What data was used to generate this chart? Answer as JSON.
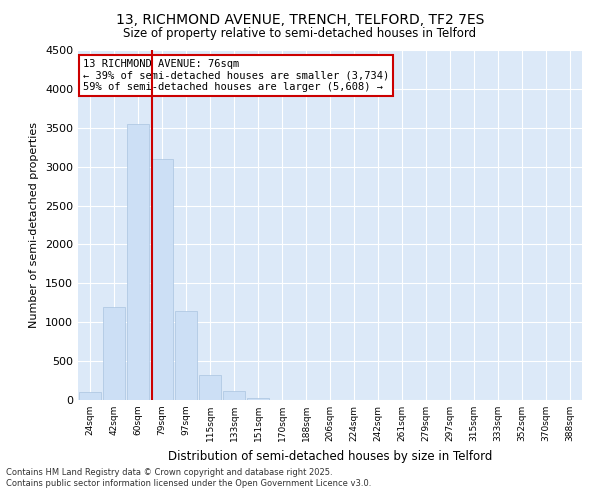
{
  "title_line1": "13, RICHMOND AVENUE, TRENCH, TELFORD, TF2 7ES",
  "title_line2": "Size of property relative to semi-detached houses in Telford",
  "xlabel": "Distribution of semi-detached houses by size in Telford",
  "ylabel": "Number of semi-detached properties",
  "categories": [
    "24sqm",
    "42sqm",
    "60sqm",
    "79sqm",
    "97sqm",
    "115sqm",
    "133sqm",
    "151sqm",
    "170sqm",
    "188sqm",
    "206sqm",
    "224sqm",
    "242sqm",
    "261sqm",
    "279sqm",
    "297sqm",
    "315sqm",
    "333sqm",
    "352sqm",
    "370sqm",
    "388sqm"
  ],
  "values": [
    100,
    1200,
    3550,
    3100,
    1150,
    320,
    115,
    30,
    5,
    2,
    2,
    0,
    0,
    0,
    0,
    0,
    0,
    0,
    0,
    0,
    0
  ],
  "bar_color": "#ccdff5",
  "bar_edge_color": "#aac4e0",
  "vline_color": "#cc0000",
  "vline_xindex": 2.57,
  "annotation_text": "13 RICHMOND AVENUE: 76sqm\n← 39% of semi-detached houses are smaller (3,734)\n59% of semi-detached houses are larger (5,608) →",
  "annotation_box_color": "#cc0000",
  "ylim": [
    0,
    4500
  ],
  "yticks": [
    0,
    500,
    1000,
    1500,
    2000,
    2500,
    3000,
    3500,
    4000,
    4500
  ],
  "footer": "Contains HM Land Registry data © Crown copyright and database right 2025.\nContains public sector information licensed under the Open Government Licence v3.0.",
  "bg_color": "#dce9f8",
  "plot_bg_color": "#dce9f8",
  "grid_color": "#ffffff",
  "fig_bg_color": "#ffffff"
}
